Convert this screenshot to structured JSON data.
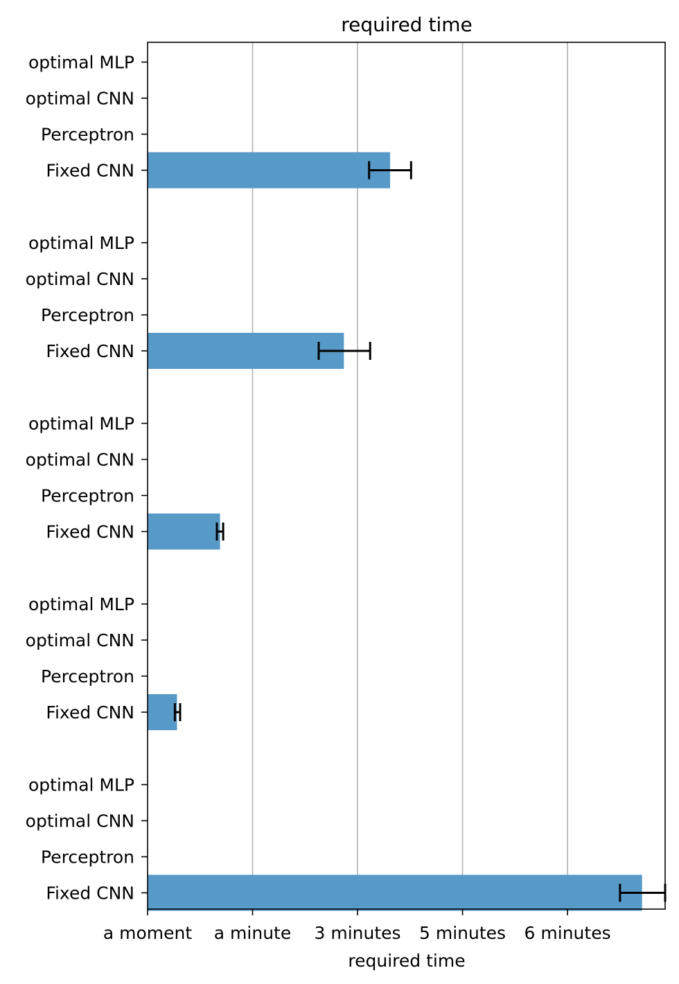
{
  "chart_data": {
    "type": "bar",
    "orientation": "horizontal",
    "title": "required time",
    "xlabel": "required time",
    "ylabel": "",
    "xlim": [
      0,
      4.93
    ],
    "x_ticks": [
      {
        "value": 0,
        "label": "a moment"
      },
      {
        "value": 1,
        "label": "a minute"
      },
      {
        "value": 2,
        "label": "3 minutes"
      },
      {
        "value": 3,
        "label": "5 minutes"
      },
      {
        "value": 4,
        "label": "6 minutes"
      }
    ],
    "grid": "x",
    "bar_color": "#5799c7",
    "groups": [
      {
        "rows": [
          {
            "label": "optimal MLP",
            "value": null,
            "error": null
          },
          {
            "label": "optimal CNN",
            "value": null,
            "error": null
          },
          {
            "label": "Perceptron",
            "value": null,
            "error": null
          },
          {
            "label": "Fixed CNN",
            "value": 2.31,
            "error": [
              2.11,
              2.51
            ]
          }
        ]
      },
      {
        "rows": [
          {
            "label": "optimal MLP",
            "value": null,
            "error": null
          },
          {
            "label": "optimal CNN",
            "value": null,
            "error": null
          },
          {
            "label": "Perceptron",
            "value": null,
            "error": null
          },
          {
            "label": "Fixed CNN",
            "value": 1.87,
            "error": [
              1.63,
              2.12
            ]
          }
        ]
      },
      {
        "rows": [
          {
            "label": "optimal MLP",
            "value": null,
            "error": null
          },
          {
            "label": "optimal CNN",
            "value": null,
            "error": null
          },
          {
            "label": "Perceptron",
            "value": null,
            "error": null
          },
          {
            "label": "Fixed CNN",
            "value": 0.69,
            "error": [
              0.66,
              0.72
            ]
          }
        ]
      },
      {
        "rows": [
          {
            "label": "optimal MLP",
            "value": null,
            "error": null
          },
          {
            "label": "optimal CNN",
            "value": null,
            "error": null
          },
          {
            "label": "Perceptron",
            "value": null,
            "error": null
          },
          {
            "label": "Fixed CNN",
            "value": 0.28,
            "error": [
              0.26,
              0.31
            ]
          }
        ]
      },
      {
        "rows": [
          {
            "label": "optimal MLP",
            "value": null,
            "error": null
          },
          {
            "label": "optimal CNN",
            "value": null,
            "error": null
          },
          {
            "label": "Perceptron",
            "value": null,
            "error": null
          },
          {
            "label": "Fixed CNN",
            "value": 4.71,
            "error": [
              4.5,
              4.93
            ]
          }
        ]
      }
    ]
  }
}
